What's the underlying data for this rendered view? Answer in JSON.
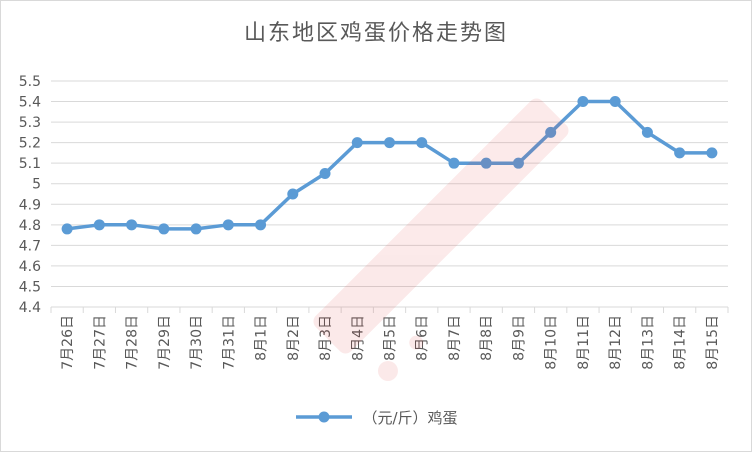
{
  "chart_data": {
    "type": "line",
    "title": "山东地区鸡蛋价格走势图",
    "xlabel": "",
    "ylabel": "",
    "categories": [
      "7月26日",
      "7月27日",
      "7月28日",
      "7月29日",
      "7月30日",
      "7月31日",
      "8月1日",
      "8月2日",
      "8月3日",
      "8月4日",
      "8月5日",
      "8月6日",
      "8月7日",
      "8月8日",
      "8月9日",
      "8月10日",
      "8月11日",
      "8月12日",
      "8月13日",
      "8月14日",
      "8月15日"
    ],
    "series": [
      {
        "name": "（元/斤）鸡蛋",
        "values": [
          4.78,
          4.8,
          4.8,
          4.78,
          4.78,
          4.8,
          4.8,
          4.95,
          5.05,
          5.2,
          5.2,
          5.2,
          5.1,
          5.1,
          5.1,
          5.25,
          5.4,
          5.4,
          5.25,
          5.15,
          5.15
        ]
      }
    ],
    "ylim": [
      4.4,
      5.5
    ],
    "yticks": [
      "4.4",
      "4.5",
      "4.6",
      "4.7",
      "4.8",
      "4.9",
      "5",
      "5.1",
      "5.2",
      "5.3",
      "5.4",
      "5.5"
    ],
    "grid": true,
    "legend_position": "bottom",
    "colors": {
      "series": "#5b9bd5",
      "grid": "#d9d9d9",
      "text": "#595959"
    }
  }
}
